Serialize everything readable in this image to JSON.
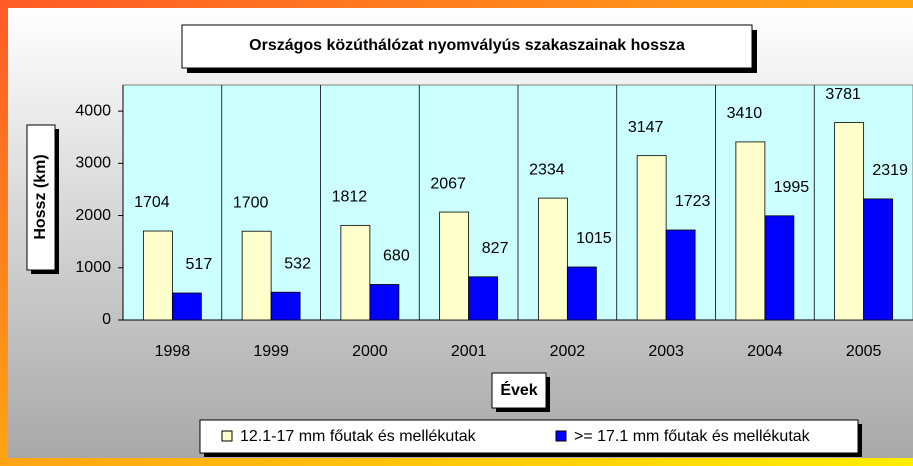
{
  "chart_data": {
    "type": "bar",
    "title": "Országos közúthálózat nyomvályús szakaszainak hossza",
    "y_label": "Hossz (km)",
    "x_label": "Évek",
    "categories": [
      "1998",
      "1999",
      "2000",
      "2001",
      "2002",
      "2003",
      "2004",
      "2005"
    ],
    "series": [
      {
        "name": "12.1-17 mm főutak és mellékutak",
        "color": "#ffffcc",
        "values": [
          1704,
          1700,
          1812,
          2067,
          2334,
          3147,
          3410,
          3781
        ]
      },
      {
        "name": ">= 17.1 mm főutak és mellékutak",
        "color": "#0000ff",
        "values": [
          517,
          532,
          680,
          827,
          1015,
          1723,
          1995,
          2319
        ]
      }
    ],
    "ylim": [
      0,
      4500
    ],
    "yticks": [
      0,
      1000,
      2000,
      3000,
      4000
    ],
    "grid": true,
    "legend": "bottom"
  }
}
